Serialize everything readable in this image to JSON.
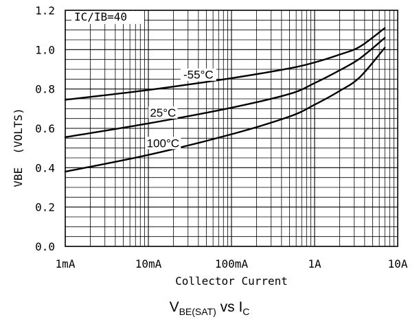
{
  "chart_data": {
    "type": "line",
    "xscale": "log",
    "xlim": [
      0.001,
      10
    ],
    "ylim": [
      0.0,
      1.2
    ],
    "xticks": [
      {
        "value": 0.001,
        "label": "1mA"
      },
      {
        "value": 0.01,
        "label": "10mA"
      },
      {
        "value": 0.1,
        "label": "100mA"
      },
      {
        "value": 1,
        "label": "1A"
      },
      {
        "value": 10,
        "label": "10A"
      }
    ],
    "yticks": [
      {
        "value": 0.0,
        "label": "0.0"
      },
      {
        "value": 0.2,
        "label": "0.2"
      },
      {
        "value": 0.4,
        "label": "0.4"
      },
      {
        "value": 0.6,
        "label": "0.6"
      },
      {
        "value": 0.8,
        "label": "0.8"
      },
      {
        "value": 1.0,
        "label": "1.0"
      },
      {
        "value": 1.2,
        "label": "1.2"
      }
    ],
    "xlabel": "Collector Current",
    "ylabel": "VBE  (VOLTS)",
    "annotation": "IC/IB=40",
    "grid": true,
    "series": [
      {
        "name": "-55°C",
        "x": [
          0.001,
          0.01,
          0.1,
          0.5,
          1,
          2,
          3.5,
          7
        ],
        "y": [
          0.745,
          0.795,
          0.855,
          0.905,
          0.935,
          0.975,
          1.015,
          1.11
        ]
      },
      {
        "name": "25°C",
        "x": [
          0.001,
          0.01,
          0.1,
          0.5,
          1,
          2,
          3.5,
          7
        ],
        "y": [
          0.555,
          0.625,
          0.705,
          0.775,
          0.83,
          0.895,
          0.955,
          1.06
        ]
      },
      {
        "name": "100°C",
        "x": [
          0.001,
          0.01,
          0.1,
          0.5,
          1,
          2,
          3.5,
          7
        ],
        "y": [
          0.38,
          0.465,
          0.57,
          0.66,
          0.72,
          0.79,
          0.86,
          1.01
        ]
      }
    ]
  },
  "caption": {
    "main": "V",
    "sub1": "BE(SAT)",
    "mid": " vs I",
    "sub2": "C"
  }
}
